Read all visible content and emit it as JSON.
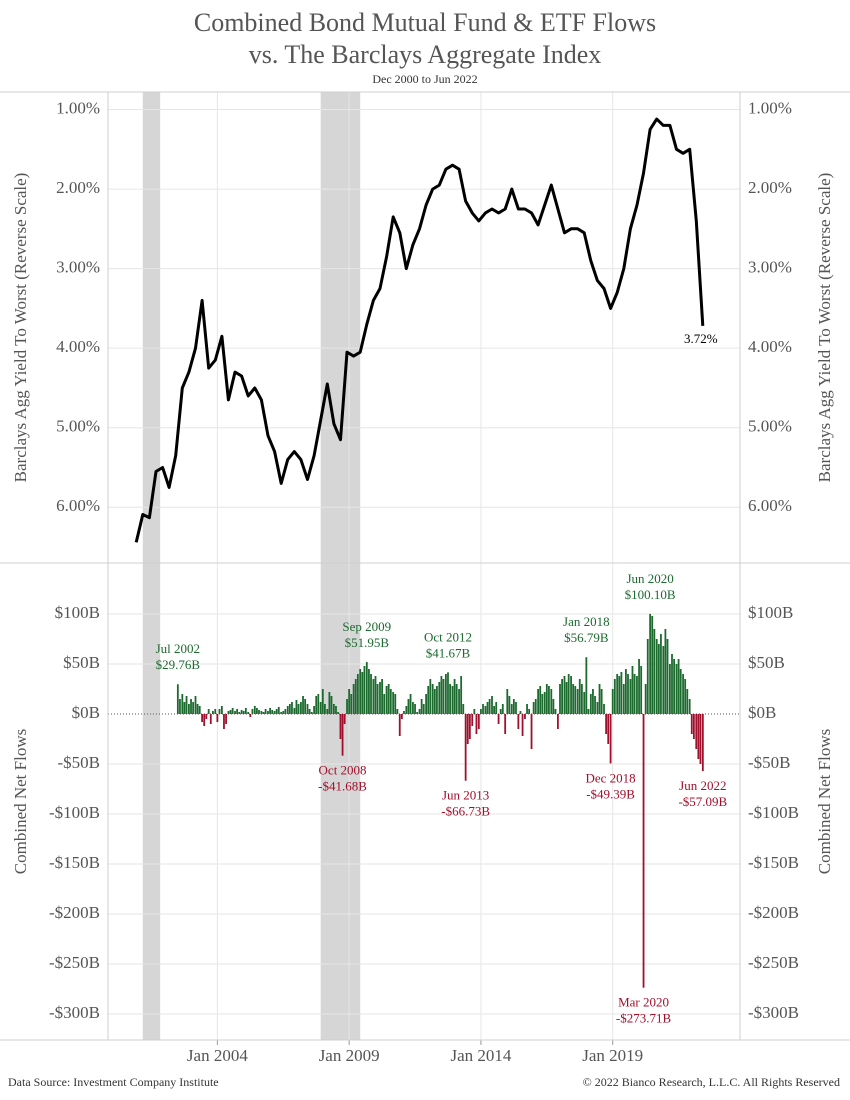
{
  "chart_data": [
    {
      "type": "line",
      "title": "Combined Bond Mutual Fund & ETF Flows",
      "title2": "vs. The Barclays Aggregate Index",
      "subtitle": "Dec 2000 to Jun 2022",
      "y_label": "Barclays Agg Yield To Worst (Reverse Scale)",
      "color": "#000000",
      "y_reversed": true,
      "grid": true,
      "xlim": [
        1999.85,
        2023.83
      ],
      "xticks": [
        {
          "value": 2004,
          "label": "Jan 2004"
        },
        {
          "value": 2009,
          "label": "Jan 2009"
        },
        {
          "value": 2014,
          "label": "Jan 2014"
        },
        {
          "value": 2019,
          "label": "Jan 2019"
        }
      ],
      "ylim": [
        0.78,
        6.7
      ],
      "yticks": [
        {
          "value": 1,
          "label": "1.00%"
        },
        {
          "value": 2,
          "label": "2.00%"
        },
        {
          "value": 3,
          "label": "3.00%"
        },
        {
          "value": 4,
          "label": "4.00%"
        },
        {
          "value": 5,
          "label": "5.00%"
        },
        {
          "value": 6,
          "label": "6.00%"
        }
      ],
      "shaded_periods": [
        [
          2001.17,
          2001.83
        ],
        [
          2007.92,
          2009.42
        ]
      ],
      "x": [
        2000.92,
        2001.17,
        2001.42,
        2001.67,
        2001.92,
        2002.17,
        2002.42,
        2002.67,
        2002.92,
        2003.17,
        2003.42,
        2003.67,
        2003.92,
        2004.17,
        2004.42,
        2004.67,
        2004.92,
        2005.17,
        2005.42,
        2005.67,
        2005.92,
        2006.17,
        2006.42,
        2006.67,
        2006.92,
        2007.17,
        2007.42,
        2007.67,
        2007.92,
        2008.17,
        2008.42,
        2008.67,
        2008.92,
        2009.17,
        2009.42,
        2009.67,
        2009.92,
        2010.17,
        2010.42,
        2010.67,
        2010.92,
        2011.17,
        2011.42,
        2011.67,
        2011.92,
        2012.17,
        2012.42,
        2012.67,
        2012.92,
        2013.17,
        2013.42,
        2013.67,
        2013.92,
        2014.17,
        2014.42,
        2014.67,
        2014.92,
        2015.17,
        2015.42,
        2015.67,
        2015.92,
        2016.17,
        2016.42,
        2016.67,
        2016.92,
        2017.17,
        2017.42,
        2017.67,
        2017.92,
        2018.17,
        2018.42,
        2018.67,
        2018.92,
        2019.17,
        2019.42,
        2019.67,
        2019.92,
        2020.17,
        2020.42,
        2020.67,
        2020.92,
        2021.17,
        2021.42,
        2021.67,
        2021.92,
        2022.17,
        2022.42
      ],
      "values": [
        6.44,
        6.09,
        6.13,
        5.55,
        5.5,
        5.75,
        5.35,
        4.5,
        4.3,
        4.0,
        3.4,
        4.25,
        4.15,
        3.85,
        4.65,
        4.3,
        4.35,
        4.6,
        4.5,
        4.65,
        5.1,
        5.3,
        5.7,
        5.4,
        5.3,
        5.4,
        5.65,
        5.35,
        4.9,
        4.45,
        4.95,
        5.15,
        4.05,
        4.1,
        4.05,
        3.7,
        3.4,
        3.25,
        2.85,
        2.35,
        2.55,
        3.0,
        2.7,
        2.5,
        2.2,
        2.0,
        1.95,
        1.75,
        1.7,
        1.75,
        2.15,
        2.3,
        2.4,
        2.3,
        2.25,
        2.3,
        2.25,
        2.0,
        2.25,
        2.25,
        2.3,
        2.45,
        2.2,
        1.95,
        2.25,
        2.55,
        2.5,
        2.5,
        2.55,
        2.9,
        3.15,
        3.25,
        3.5,
        3.3,
        3.0,
        2.5,
        2.2,
        1.8,
        1.25,
        1.12,
        1.2,
        1.2,
        1.5,
        1.55,
        1.5,
        2.4,
        3.72
      ],
      "annotations": [
        {
          "x": 2022.42,
          "label": "3.72%"
        }
      ]
    },
    {
      "type": "bar",
      "y_label": "Combined Net Flows",
      "positive_color": "#1d6a2f",
      "negative_color": "#a0102c",
      "grid": true,
      "xlim": [
        1999.85,
        2023.83
      ],
      "xticks": [
        {
          "value": 2004,
          "label": "Jan 2004"
        },
        {
          "value": 2009,
          "label": "Jan 2009"
        },
        {
          "value": 2014,
          "label": "Jan 2014"
        },
        {
          "value": 2019,
          "label": "Jan 2019"
        }
      ],
      "ylim": [
        -326,
        151
      ],
      "yticks": [
        {
          "value": 100,
          "label": "$100B"
        },
        {
          "value": 50,
          "label": "$50B"
        },
        {
          "value": 0,
          "label": "$0B"
        },
        {
          "value": -50,
          "label": "-$50B"
        },
        {
          "value": -100,
          "label": "-$100B"
        },
        {
          "value": -150,
          "label": "-$150B"
        },
        {
          "value": -200,
          "label": "-$200B"
        },
        {
          "value": -250,
          "label": "-$250B"
        },
        {
          "value": -300,
          "label": "-$300B"
        }
      ],
      "x": [
        2002.5,
        2002.58,
        2002.67,
        2002.75,
        2002.83,
        2002.92,
        2003.0,
        2003.08,
        2003.17,
        2003.25,
        2003.33,
        2003.42,
        2003.5,
        2003.58,
        2003.67,
        2003.75,
        2003.83,
        2003.92,
        2004.0,
        2004.08,
        2004.17,
        2004.25,
        2004.33,
        2004.42,
        2004.5,
        2004.58,
        2004.67,
        2004.75,
        2004.83,
        2004.92,
        2005.0,
        2005.08,
        2005.17,
        2005.25,
        2005.33,
        2005.42,
        2005.5,
        2005.58,
        2005.67,
        2005.75,
        2005.83,
        2005.92,
        2006.0,
        2006.08,
        2006.17,
        2006.25,
        2006.33,
        2006.42,
        2006.5,
        2006.58,
        2006.67,
        2006.75,
        2006.83,
        2006.92,
        2007.0,
        2007.08,
        2007.17,
        2007.25,
        2007.33,
        2007.42,
        2007.5,
        2007.58,
        2007.67,
        2007.75,
        2007.83,
        2007.92,
        2008.0,
        2008.08,
        2008.17,
        2008.25,
        2008.33,
        2008.42,
        2008.5,
        2008.58,
        2008.67,
        2008.75,
        2008.83,
        2008.92,
        2009.0,
        2009.08,
        2009.17,
        2009.25,
        2009.33,
        2009.42,
        2009.5,
        2009.58,
        2009.67,
        2009.75,
        2009.83,
        2009.92,
        2010.0,
        2010.08,
        2010.17,
        2010.25,
        2010.33,
        2010.42,
        2010.5,
        2010.58,
        2010.67,
        2010.75,
        2010.83,
        2010.92,
        2011.0,
        2011.08,
        2011.17,
        2011.25,
        2011.33,
        2011.42,
        2011.5,
        2011.58,
        2011.67,
        2011.75,
        2011.83,
        2011.92,
        2012.0,
        2012.08,
        2012.17,
        2012.25,
        2012.33,
        2012.42,
        2012.5,
        2012.58,
        2012.67,
        2012.75,
        2012.83,
        2012.92,
        2013.0,
        2013.08,
        2013.17,
        2013.25,
        2013.33,
        2013.42,
        2013.5,
        2013.58,
        2013.67,
        2013.75,
        2013.83,
        2013.92,
        2014.0,
        2014.08,
        2014.17,
        2014.25,
        2014.33,
        2014.42,
        2014.5,
        2014.58,
        2014.67,
        2014.75,
        2014.83,
        2014.92,
        2015.0,
        2015.08,
        2015.17,
        2015.25,
        2015.33,
        2015.42,
        2015.5,
        2015.58,
        2015.67,
        2015.75,
        2015.83,
        2015.92,
        2016.0,
        2016.08,
        2016.17,
        2016.25,
        2016.33,
        2016.42,
        2016.5,
        2016.58,
        2016.67,
        2016.75,
        2016.83,
        2016.92,
        2017.0,
        2017.08,
        2017.17,
        2017.25,
        2017.33,
        2017.42,
        2017.5,
        2017.58,
        2017.67,
        2017.75,
        2017.83,
        2017.92,
        2018.0,
        2018.08,
        2018.17,
        2018.25,
        2018.33,
        2018.42,
        2018.5,
        2018.58,
        2018.67,
        2018.75,
        2018.83,
        2018.92,
        2019.0,
        2019.08,
        2019.17,
        2019.25,
        2019.33,
        2019.42,
        2019.5,
        2019.58,
        2019.67,
        2019.75,
        2019.83,
        2019.92,
        2020.0,
        2020.08,
        2020.17,
        2020.25,
        2020.33,
        2020.42,
        2020.5,
        2020.58,
        2020.67,
        2020.75,
        2020.83,
        2020.92,
        2021.0,
        2021.08,
        2021.17,
        2021.25,
        2021.33,
        2021.42,
        2021.5,
        2021.58,
        2021.67,
        2021.75,
        2021.83,
        2021.92,
        2022.0,
        2022.08,
        2022.17,
        2022.25,
        2022.33,
        2022.42
      ],
      "values": [
        29.76,
        15,
        20,
        12,
        18,
        10,
        15,
        12,
        18,
        10,
        8,
        -8,
        -12,
        -5,
        5,
        -10,
        3,
        5,
        -8,
        5,
        8,
        -15,
        -10,
        3,
        4,
        6,
        3,
        5,
        2,
        4,
        3,
        6,
        2,
        -3,
        5,
        8,
        6,
        4,
        3,
        2,
        5,
        3,
        6,
        4,
        3,
        5,
        7,
        2,
        3,
        5,
        8,
        10,
        12,
        6,
        14,
        10,
        12,
        18,
        15,
        10,
        5,
        2,
        8,
        18,
        20,
        12,
        25,
        10,
        5,
        22,
        18,
        10,
        8,
        2,
        -25,
        -41.68,
        -10,
        15,
        25,
        20,
        30,
        35,
        40,
        45,
        42,
        48,
        51.95,
        45,
        40,
        35,
        38,
        30,
        32,
        35,
        20,
        28,
        30,
        25,
        22,
        20,
        5,
        -22,
        -5,
        3,
        8,
        15,
        20,
        12,
        10,
        2,
        5,
        15,
        10,
        20,
        28,
        35,
        30,
        25,
        28,
        32,
        38,
        35,
        40,
        41.67,
        30,
        28,
        35,
        30,
        25,
        38,
        10,
        -66.73,
        -30,
        -25,
        -12,
        5,
        -20,
        -15,
        5,
        10,
        8,
        12,
        15,
        18,
        8,
        12,
        -10,
        5,
        10,
        -20,
        25,
        18,
        10,
        15,
        12,
        -15,
        3,
        -22,
        -5,
        10,
        5,
        -35,
        12,
        15,
        25,
        28,
        20,
        22,
        30,
        28,
        25,
        15,
        5,
        -15,
        30,
        35,
        38,
        32,
        40,
        38,
        30,
        28,
        25,
        35,
        30,
        22,
        56.79,
        5,
        20,
        25,
        18,
        12,
        30,
        25,
        10,
        -20,
        -30,
        -49.39,
        25,
        35,
        40,
        38,
        42,
        30,
        45,
        40,
        35,
        48,
        40,
        38,
        55,
        48,
        -273.71,
        30,
        75,
        100.1,
        98,
        85,
        75,
        70,
        80,
        68,
        85,
        75,
        50,
        60,
        55,
        50,
        55,
        45,
        40,
        35,
        25,
        15,
        -20,
        -25,
        -35,
        -45,
        -50,
        -57.09
      ],
      "annotations": [
        {
          "x": 2002.5,
          "date": "Jul 2002",
          "label": "$29.76B"
        },
        {
          "x": 2008.75,
          "date": "Oct 2008",
          "label": "-$41.68B"
        },
        {
          "x": 2009.67,
          "date": "Sep 2009",
          "label": "$51.95B"
        },
        {
          "x": 2012.75,
          "date": "Oct 2012",
          "label": "$41.67B"
        },
        {
          "x": 2013.42,
          "date": "Jun 2013",
          "label": "-$66.73B"
        },
        {
          "x": 2018.0,
          "date": "Jan 2018",
          "label": "$56.79B"
        },
        {
          "x": 2018.92,
          "date": "Dec 2018",
          "label": "-$49.39B"
        },
        {
          "x": 2020.17,
          "date": "Mar 2020",
          "label": "-$273.71B"
        },
        {
          "x": 2020.42,
          "date": "Jun 2020",
          "label": "$100.10B"
        },
        {
          "x": 2022.42,
          "date": "Jun 2022",
          "label": "-$57.09B"
        }
      ]
    }
  ],
  "footer": {
    "source": "Data Source: Investment Company Institute",
    "copyright": "© 2022 Bianco Research, L.L.C. All Rights Reserved"
  }
}
